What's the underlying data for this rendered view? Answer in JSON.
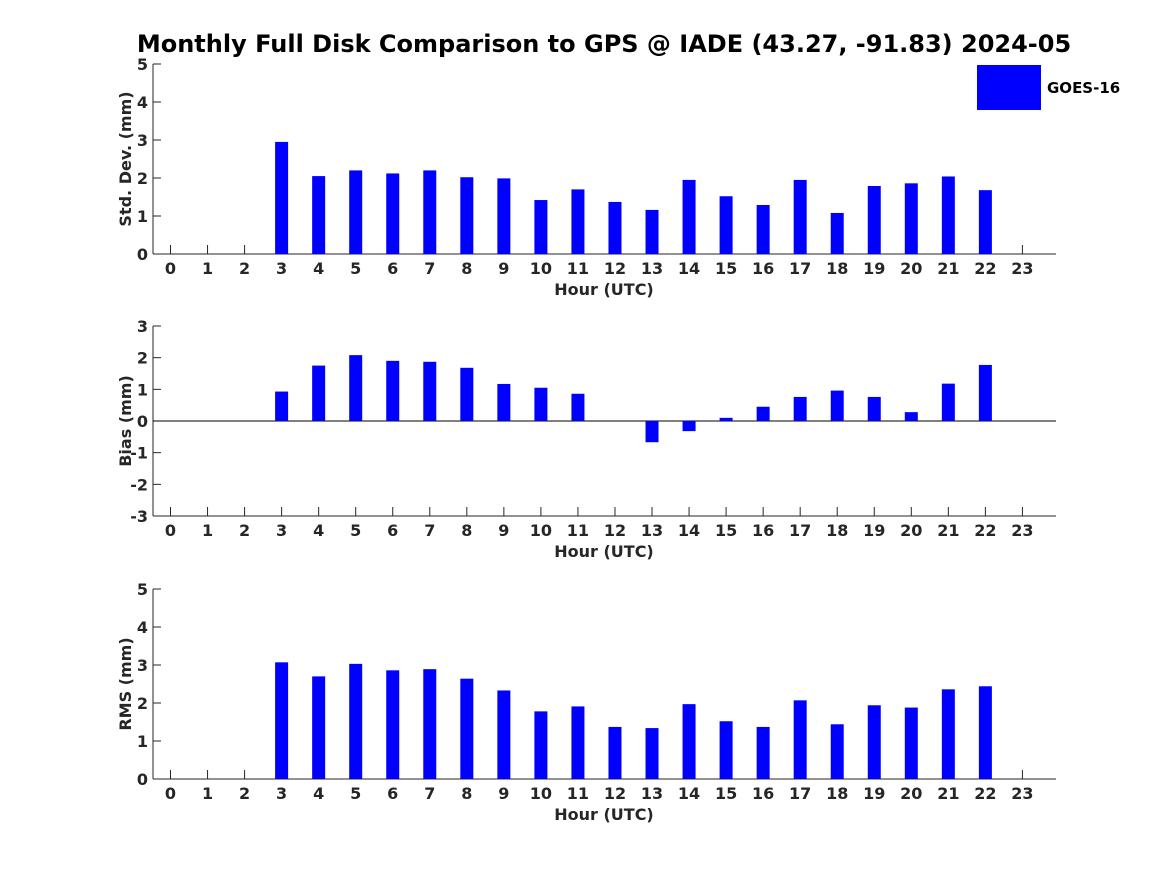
{
  "title": "Monthly Full Disk Comparison to GPS @ IADE (43.27, -91.83) 2024-05",
  "legend": {
    "label": "GOES-16",
    "color": "#0000ff"
  },
  "chart_data": [
    {
      "type": "bar",
      "name": "std-dev",
      "title": "Monthly Full Disk Comparison to GPS @ IADE (43.27, -91.83) 2024-05",
      "xlabel": "Hour (UTC)",
      "ylabel": "Std. Dev. (mm)",
      "categories": [
        "0",
        "1",
        "2",
        "3",
        "4",
        "5",
        "6",
        "7",
        "8",
        "9",
        "10",
        "11",
        "12",
        "13",
        "14",
        "15",
        "16",
        "17",
        "18",
        "19",
        "20",
        "21",
        "22",
        "23"
      ],
      "ylim": [
        0,
        5
      ],
      "yticks": [
        "0",
        "1",
        "2",
        "3",
        "4",
        "5"
      ],
      "series": [
        {
          "name": "GOES-16",
          "color": "#0000ff",
          "values": [
            null,
            null,
            null,
            2.95,
            2.05,
            2.2,
            2.12,
            2.2,
            2.02,
            1.99,
            1.42,
            1.7,
            1.37,
            1.16,
            1.95,
            1.52,
            1.29,
            1.95,
            1.08,
            1.79,
            1.86,
            2.04,
            1.68,
            null
          ]
        }
      ]
    },
    {
      "type": "bar",
      "name": "bias",
      "xlabel": "Hour (UTC)",
      "ylabel": "Bias (mm)",
      "categories": [
        "0",
        "1",
        "2",
        "3",
        "4",
        "5",
        "6",
        "7",
        "8",
        "9",
        "10",
        "11",
        "12",
        "13",
        "14",
        "15",
        "16",
        "17",
        "18",
        "19",
        "20",
        "21",
        "22",
        "23"
      ],
      "ylim": [
        -3,
        3
      ],
      "yticks": [
        "-3",
        "-2",
        "-1",
        "0",
        "1",
        "2",
        "3"
      ],
      "series": [
        {
          "name": "GOES-16",
          "color": "#0000ff",
          "values": [
            null,
            null,
            null,
            0.93,
            1.75,
            2.08,
            1.9,
            1.87,
            1.68,
            1.17,
            1.05,
            0.86,
            null,
            -0.67,
            -0.32,
            0.1,
            0.45,
            0.76,
            0.96,
            0.76,
            0.28,
            1.18,
            1.77,
            null
          ]
        }
      ]
    },
    {
      "type": "bar",
      "name": "rms",
      "xlabel": "Hour (UTC)",
      "ylabel": "RMS (mm)",
      "categories": [
        "0",
        "1",
        "2",
        "3",
        "4",
        "5",
        "6",
        "7",
        "8",
        "9",
        "10",
        "11",
        "12",
        "13",
        "14",
        "15",
        "16",
        "17",
        "18",
        "19",
        "20",
        "21",
        "22",
        "23"
      ],
      "ylim": [
        0,
        5
      ],
      "yticks": [
        "0",
        "1",
        "2",
        "3",
        "4",
        "5"
      ],
      "series": [
        {
          "name": "GOES-16",
          "color": "#0000ff",
          "values": [
            null,
            null,
            null,
            3.07,
            2.7,
            3.03,
            2.86,
            2.89,
            2.64,
            2.33,
            1.78,
            1.91,
            1.37,
            1.34,
            1.97,
            1.52,
            1.37,
            2.07,
            1.44,
            1.94,
            1.88,
            2.36,
            2.44,
            null
          ]
        }
      ]
    }
  ]
}
